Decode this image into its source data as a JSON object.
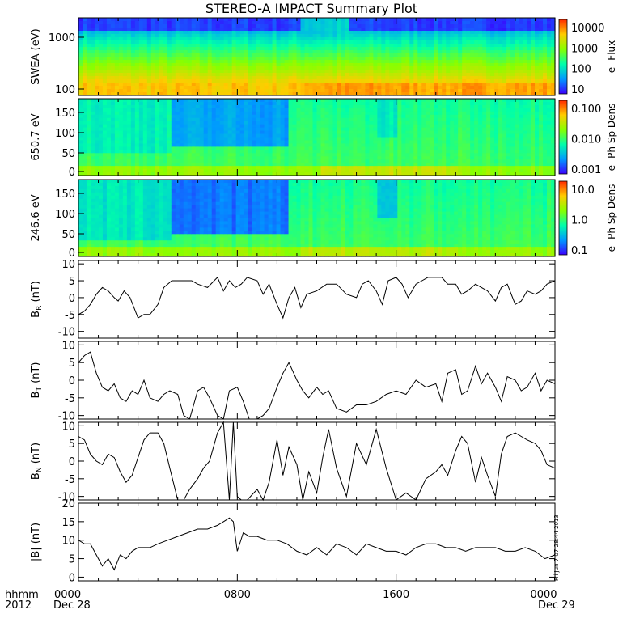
{
  "title": "STEREO-A IMPACT Summary Plot",
  "bottom_labels": {
    "hhmm": "hhmm",
    "year": "2012",
    "date_start": "Dec 28",
    "date_end": "Dec 29"
  },
  "timestamp": "Fri Jun  7 07:28:44 2013",
  "chart_data": [
    {
      "type": "heatmap",
      "ylabel": "SWEA (eV)",
      "ylog": true,
      "yticks": [
        "1000",
        "100"
      ],
      "colorbar": {
        "label": "e- Flux",
        "ticks": [
          "10000",
          "1000",
          "100",
          "10"
        ],
        "log": true
      },
      "description_values": {
        "x_range_hours": [
          0,
          24
        ],
        "y_range": [
          90,
          2000
        ]
      }
    },
    {
      "type": "heatmap",
      "ylabel": "650.7 eV",
      "yticks": [
        "150",
        "100",
        "50",
        "0"
      ],
      "ylim": [
        -10,
        180
      ],
      "colorbar": {
        "label": "e- Ph Sp Dens",
        "ticks": [
          "0.100",
          "0.010",
          "0.001"
        ],
        "log": true
      }
    },
    {
      "type": "heatmap",
      "ylabel": "246.6 eV",
      "yticks": [
        "150",
        "100",
        "50",
        "0"
      ],
      "ylim": [
        -10,
        180
      ],
      "colorbar": {
        "label": "e- Ph Sp Dens",
        "ticks": [
          "10.0",
          "1.0",
          "0.1"
        ],
        "log": true
      }
    },
    {
      "type": "line",
      "ylabel": "B_R (nT)",
      "ylim": [
        -12,
        11
      ],
      "yticks": [
        "10",
        "5",
        "0",
        "-5",
        "-10"
      ],
      "x": [
        0,
        0.3,
        0.6,
        0.9,
        1.2,
        1.5,
        1.8,
        2.0,
        2.3,
        2.6,
        3.0,
        3.3,
        3.6,
        4.0,
        4.3,
        4.7,
        5.0,
        5.3,
        5.7,
        6.0,
        6.5,
        7.0,
        7.3,
        7.6,
        7.9,
        8.2,
        8.5,
        9.0,
        9.3,
        9.6,
        10.0,
        10.3,
        10.6,
        10.9,
        11.2,
        11.5,
        12.0,
        12.5,
        13.0,
        13.5,
        14.0,
        14.3,
        14.6,
        15.0,
        15.3,
        15.6,
        16.0,
        16.3,
        16.6,
        17.0,
        17.3,
        17.6,
        18.0,
        18.3,
        18.6,
        19.0,
        19.3,
        19.6,
        20.0,
        20.3,
        20.6,
        21.0,
        21.3,
        21.6,
        22.0,
        22.3,
        22.6,
        23.0,
        23.3,
        23.6,
        24.0
      ],
      "y": [
        -5,
        -4,
        -2,
        1,
        3,
        2,
        0,
        -1,
        2,
        0,
        -6,
        -5,
        -5,
        -2,
        3,
        5,
        5,
        5,
        5,
        4,
        3,
        6,
        2,
        5,
        3,
        4,
        6,
        5,
        1,
        4,
        -2,
        -6,
        0,
        3,
        -3,
        1,
        2,
        4,
        4,
        1,
        0,
        4,
        5,
        2,
        -2,
        5,
        6,
        4,
        0,
        4,
        5,
        6,
        6,
        6,
        4,
        4,
        1,
        2,
        4,
        3,
        2,
        -1,
        3,
        4,
        -2,
        -1,
        2,
        1,
        2,
        4,
        5
      ],
      "x_ticks": [
        "0000",
        "0800",
        "1600",
        "0000"
      ]
    },
    {
      "type": "line",
      "ylabel": "B_T (nT)",
      "ylim": [
        -11,
        11
      ],
      "yticks": [
        "10",
        "5",
        "0",
        "-5",
        "-10"
      ],
      "x": [
        0,
        0.3,
        0.6,
        0.9,
        1.2,
        1.5,
        1.8,
        2.1,
        2.4,
        2.7,
        3.0,
        3.3,
        3.6,
        4.0,
        4.3,
        4.6,
        5.0,
        5.3,
        5.6,
        6.0,
        6.3,
        6.6,
        7.0,
        7.3,
        7.6,
        8.0,
        8.3,
        8.6,
        9.0,
        9.3,
        9.6,
        10.0,
        10.3,
        10.6,
        11.0,
        11.3,
        11.6,
        12.0,
        12.3,
        12.6,
        13.0,
        13.5,
        14.0,
        14.5,
        15.0,
        15.5,
        16.0,
        16.5,
        17.0,
        17.5,
        18.0,
        18.3,
        18.6,
        19.0,
        19.3,
        19.6,
        20.0,
        20.3,
        20.6,
        21.0,
        21.3,
        21.6,
        22.0,
        22.3,
        22.6,
        23.0,
        23.3,
        23.6,
        24.0
      ],
      "y": [
        5,
        7,
        8,
        2,
        -2,
        -3,
        -1,
        -5,
        -6,
        -3,
        -4,
        0,
        -5,
        -6,
        -4,
        -3,
        -4,
        -10,
        -11,
        -3,
        -2,
        -5,
        -10,
        -11,
        -3,
        -2,
        -6,
        -11,
        -11,
        -10,
        -8,
        -2,
        2,
        5,
        0,
        -3,
        -5,
        -2,
        -4,
        -3,
        -8,
        -9,
        -7,
        -7,
        -6,
        -4,
        -3,
        -4,
        0,
        -2,
        -1,
        -6,
        2,
        3,
        -4,
        -3,
        4,
        -1,
        2,
        -2,
        -6,
        1,
        0,
        -3,
        -2,
        2,
        -3,
        0,
        -1
      ]
    },
    {
      "type": "line",
      "ylabel": "B_N (nT)",
      "ylim": [
        -11,
        11
      ],
      "yticks": [
        "10",
        "5",
        "0",
        "-5",
        "-10"
      ],
      "x": [
        0,
        0.3,
        0.6,
        0.9,
        1.2,
        1.5,
        1.8,
        2.1,
        2.4,
        2.7,
        3.0,
        3.3,
        3.6,
        4.0,
        4.3,
        4.6,
        5.0,
        5.3,
        5.6,
        6.0,
        6.3,
        6.6,
        7.0,
        7.3,
        7.6,
        7.8,
        8.0,
        8.2,
        8.5,
        9.0,
        9.3,
        9.6,
        10.0,
        10.3,
        10.6,
        11.0,
        11.3,
        11.6,
        12.0,
        12.3,
        12.6,
        13.0,
        13.5,
        14.0,
        14.5,
        15.0,
        15.5,
        16.0,
        16.5,
        17.0,
        17.5,
        18.0,
        18.3,
        18.6,
        19.0,
        19.3,
        19.6,
        20.0,
        20.3,
        20.6,
        21.0,
        21.3,
        21.6,
        22.0,
        22.3,
        22.6,
        23.0,
        23.3,
        23.6,
        24.0
      ],
      "y": [
        7,
        6,
        2,
        0,
        -1,
        2,
        1,
        -3,
        -6,
        -4,
        1,
        6,
        8,
        8,
        5,
        -2,
        -11,
        -11,
        -8,
        -5,
        -2,
        0,
        8,
        11,
        -11,
        11,
        -10,
        -11,
        -11,
        -8,
        -11,
        -6,
        6,
        -4,
        4,
        -1,
        -11,
        -3,
        -9,
        1,
        9,
        -2,
        -10,
        5,
        -1,
        9,
        -2,
        -11,
        -9,
        -11,
        -5,
        -3,
        -1,
        -4,
        3,
        7,
        5,
        -6,
        1,
        -4,
        -10,
        2,
        7,
        8,
        7,
        6,
        5,
        3,
        -1,
        -2
      ]
    },
    {
      "type": "line",
      "ylabel": "|B| (nT)",
      "ylim": [
        -1,
        20
      ],
      "yticks": [
        "20",
        "15",
        "10",
        "5",
        "0"
      ],
      "x": [
        0,
        0.3,
        0.6,
        0.9,
        1.2,
        1.5,
        1.8,
        2.1,
        2.4,
        2.7,
        3.0,
        3.3,
        3.6,
        4.0,
        4.5,
        5.0,
        5.5,
        6.0,
        6.5,
        7.0,
        7.3,
        7.6,
        7.8,
        8.0,
        8.3,
        8.6,
        9.0,
        9.5,
        10.0,
        10.5,
        11.0,
        11.5,
        12.0,
        12.5,
        13.0,
        13.5,
        14.0,
        14.5,
        15.0,
        15.5,
        16.0,
        16.5,
        17.0,
        17.5,
        18.0,
        18.5,
        19.0,
        19.5,
        20.0,
        20.5,
        21.0,
        21.5,
        22.0,
        22.5,
        23.0,
        23.5,
        24.0
      ],
      "y": [
        10,
        9,
        9,
        6,
        3,
        5,
        2,
        6,
        5,
        7,
        8,
        8,
        8,
        9,
        10,
        11,
        12,
        13,
        13,
        14,
        15,
        16,
        15,
        7,
        12,
        11,
        11,
        10,
        10,
        9,
        7,
        6,
        8,
        6,
        9,
        8,
        6,
        9,
        8,
        7,
        7,
        6,
        8,
        9,
        9,
        8,
        8,
        7,
        8,
        8,
        8,
        7,
        7,
        8,
        7,
        5,
        6
      ]
    }
  ]
}
